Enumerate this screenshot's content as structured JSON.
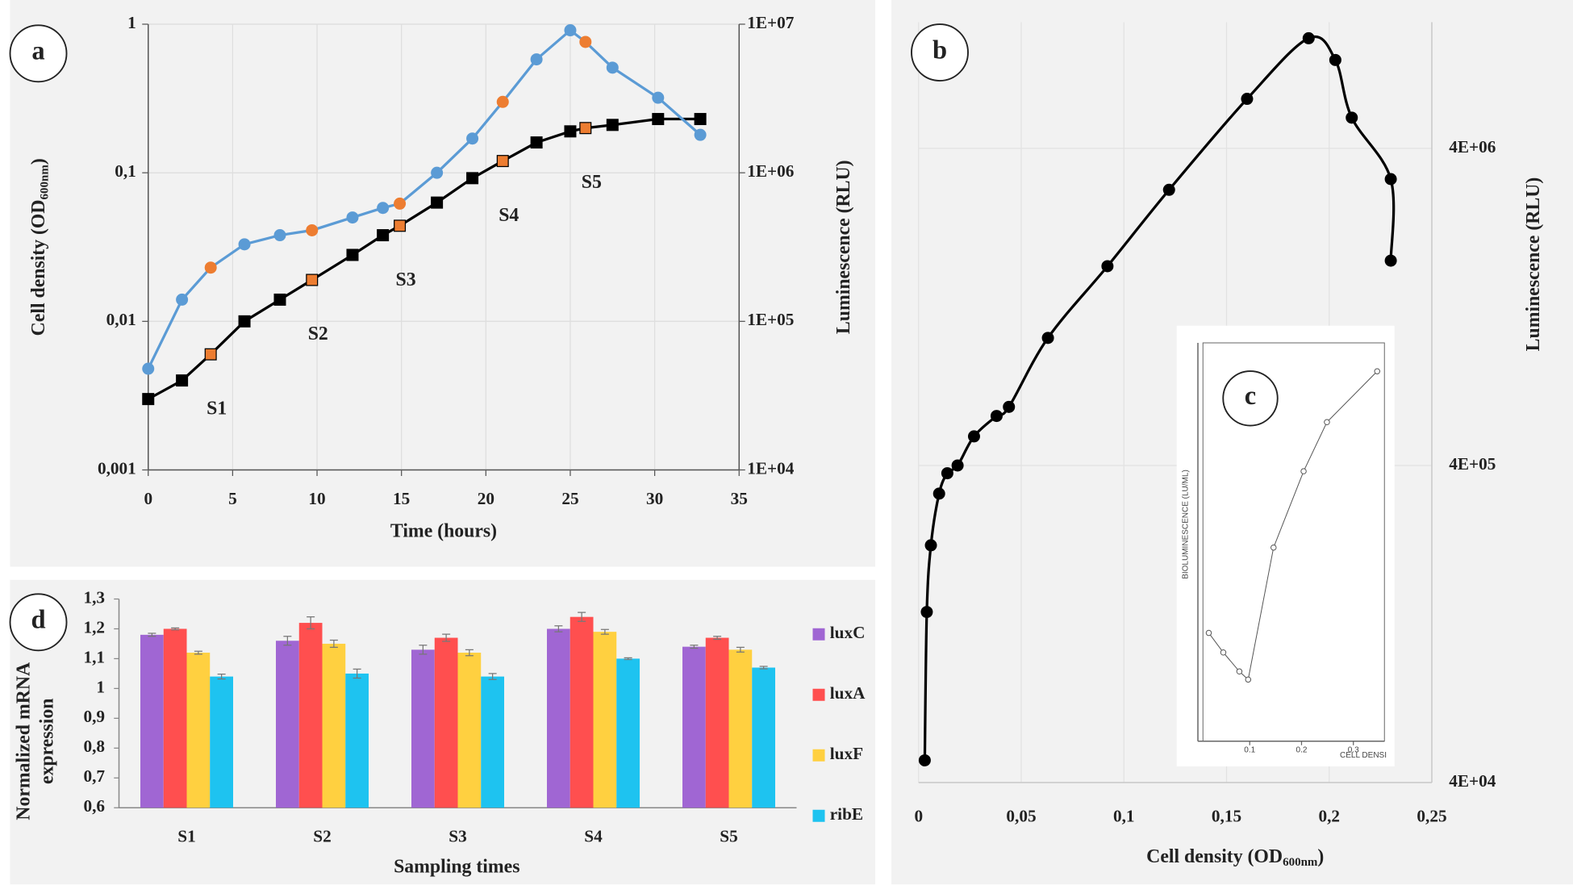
{
  "chart_data": [
    {
      "type": "line",
      "panel_label": "a",
      "xlabel": "Time (hours)",
      "ylabel_parts": [
        "Cell density (OD",
        "600nm",
        ")"
      ],
      "y2label": "Luminescence (RLU)",
      "xlim": [
        0,
        35
      ],
      "xticks": [
        0,
        5,
        10,
        15,
        20,
        25,
        30,
        35
      ],
      "ylim": [
        0.001,
        1
      ],
      "ylog": true,
      "yticks": [
        {
          "value": 0.001,
          "label": "0,001"
        },
        {
          "value": 0.01,
          "label": "0,01"
        },
        {
          "value": 0.1,
          "label": "0,1"
        },
        1
      ],
      "y2lim": [
        10000,
        10000000
      ],
      "y2log": true,
      "y2ticks": [
        {
          "value": 10000,
          "label": "1E+04"
        },
        {
          "value": 100000,
          "label": "1E+05"
        },
        {
          "value": 1000000,
          "label": "1E+06"
        },
        {
          "value": 10000000,
          "label": "1E+07"
        }
      ],
      "grid": true,
      "x": [
        0,
        2.0,
        3.7,
        5.7,
        7.8,
        9.7,
        12.1,
        13.9,
        14.9,
        17.1,
        19.2,
        21.0,
        23.0,
        25.0,
        25.9,
        27.5,
        30.2,
        32.7
      ],
      "series": [
        {
          "color": "#000000",
          "marker": "square",
          "point_colors": [
            "#000000",
            "#000000",
            "#ed7d31",
            "#000000",
            "#000000",
            "#ed7d31",
            "#000000",
            "#000000",
            "#ed7d31",
            "#000000",
            "#000000",
            "#ed7d31",
            "#000000",
            "#000000",
            "#ed7d31",
            "#000000",
            "#000000",
            "#000000"
          ],
          "values": [
            0.003,
            0.004,
            0.006,
            0.01,
            0.014,
            0.019,
            0.028,
            0.038,
            0.044,
            0.063,
            0.092,
            0.12,
            0.16,
            0.19,
            0.2,
            0.21,
            0.23,
            0.23
          ]
        },
        {
          "color": "#5b9bd5",
          "marker": "circle",
          "axis": "y2",
          "point_colors": [
            "#5b9bd5",
            "#5b9bd5",
            "#ed7d31",
            "#5b9bd5",
            "#5b9bd5",
            "#ed7d31",
            "#5b9bd5",
            "#5b9bd5",
            "#ed7d31",
            "#5b9bd5",
            "#5b9bd5",
            "#ed7d31",
            "#5b9bd5",
            "#5b9bd5",
            "#ed7d31",
            "#5b9bd5",
            "#5b9bd5",
            "#5b9bd5"
          ],
          "values": [
            48000,
            140000,
            230000,
            330000,
            380000,
            410000,
            500000,
            580000,
            620000,
            1000000,
            1700000,
            3000000,
            5800000,
            9100000,
            7600000,
            5100000,
            3200000,
            1800000
          ]
        }
      ],
      "annotations": [
        "S1",
        "S2",
        "S3",
        "S4",
        "S5"
      ]
    },
    {
      "type": "line",
      "panel_label": "b",
      "smooth": true,
      "xlabel_parts": [
        "Cell density (OD",
        "600nm",
        ")"
      ],
      "y2label": "Luminescence (RLU)",
      "xlim": [
        0,
        0.25
      ],
      "xticks": [
        0,
        {
          "value": 0.05,
          "label": "0,05"
        },
        {
          "value": 0.1,
          "label": "0,1"
        },
        {
          "value": 0.15,
          "label": "0,15"
        },
        {
          "value": 0.2,
          "label": "0,2"
        },
        {
          "value": 0.25,
          "label": "0,25"
        }
      ],
      "y2lim": [
        40000,
        10000000
      ],
      "y2log": true,
      "y2ticks": [
        {
          "value": 40000,
          "label": "4E+04"
        },
        {
          "value": 400000,
          "label": "4E+05"
        },
        {
          "value": 4000000,
          "label": "4E+06"
        }
      ],
      "grid": true,
      "series": [
        {
          "color": "#000000",
          "marker": "circle",
          "axis": "y2",
          "x": [
            0.003,
            0.004,
            0.006,
            0.01,
            0.014,
            0.019,
            0.027,
            0.038,
            0.044,
            0.063,
            0.092,
            0.122,
            0.16,
            0.19,
            0.203,
            0.211,
            0.23,
            0.23
          ],
          "values": [
            47000,
            138000,
            224000,
            326000,
            378000,
            400000,
            494000,
            573000,
            612000,
            1010000,
            1700000,
            2960000,
            5730000,
            8900000,
            7600000,
            5000000,
            3200000,
            1770000
          ]
        }
      ]
    },
    {
      "type": "line",
      "panel_label": "c",
      "xlabel": "CELL DENSI",
      "ylabel": "BIOLUMINESCENCE (LU/ML)",
      "xlim": [
        0,
        0.36
      ],
      "xticks": [
        0.1,
        0.2,
        0.3
      ],
      "ylim": [
        0.1,
        150
      ],
      "ylog": true,
      "x": [
        0.021,
        0.049,
        0.08,
        0.097,
        0.146,
        0.204,
        0.249,
        0.346
      ],
      "series": [
        {
          "color": "#555555",
          "marker": "open-circle",
          "values": [
            0.73,
            0.51,
            0.36,
            0.31,
            3.5,
            14.2,
            35,
            89
          ]
        }
      ]
    },
    {
      "type": "bar",
      "panel_label": "d",
      "xlabel": "Sampling times",
      "ylabel_lines": [
        "Normalized mRNA",
        "expression"
      ],
      "categories": [
        "S1",
        "S2",
        "S3",
        "S4",
        "S5"
      ],
      "ylim": [
        0.6,
        1.3
      ],
      "yticks": [
        {
          "value": 0.6,
          "label": "0,6"
        },
        {
          "value": 0.7,
          "label": "0,7"
        },
        {
          "value": 0.8,
          "label": "0,8"
        },
        {
          "value": 0.9,
          "label": "0,9"
        },
        1,
        {
          "value": 1.1,
          "label": "1,1"
        },
        {
          "value": 1.2,
          "label": "1,2"
        },
        {
          "value": 1.3,
          "label": "1,3"
        }
      ],
      "legend": "right",
      "series": [
        {
          "name": "luxC",
          "color": "#a066d3",
          "values": [
            1.18,
            1.16,
            1.13,
            1.2,
            1.14
          ],
          "errors": [
            0.005,
            0.015,
            0.015,
            0.01,
            0.005
          ]
        },
        {
          "name": "luxA",
          "color": "#ff4f4f",
          "values": [
            1.2,
            1.22,
            1.17,
            1.24,
            1.17
          ],
          "errors": [
            0.003,
            0.02,
            0.012,
            0.015,
            0.005
          ]
        },
        {
          "name": "luxF",
          "color": "#ffd040",
          "values": [
            1.12,
            1.15,
            1.12,
            1.19,
            1.13
          ],
          "errors": [
            0.005,
            0.012,
            0.01,
            0.008,
            0.008
          ]
        },
        {
          "name": "ribE",
          "color": "#1ec3f0",
          "values": [
            1.04,
            1.05,
            1.04,
            1.1,
            1.07
          ],
          "errors": [
            0.008,
            0.015,
            0.01,
            0.003,
            0.004
          ]
        }
      ]
    }
  ]
}
